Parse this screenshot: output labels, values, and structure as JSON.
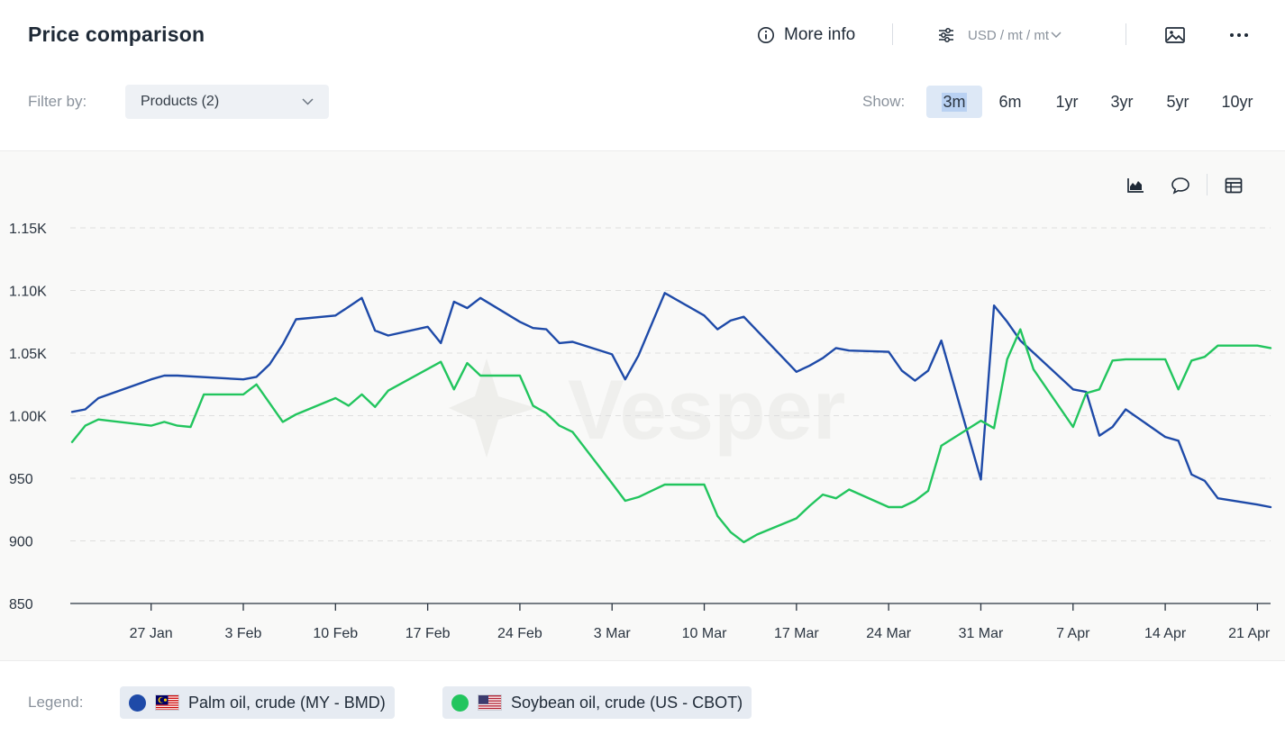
{
  "header": {
    "title": "Price comparison",
    "more_info_label": "More info",
    "unit_label": "USD / mt / mt"
  },
  "filters": {
    "filter_label": "Filter by:",
    "product_select_value": "Products (2)",
    "show_label": "Show:",
    "ranges": [
      {
        "label": "3m",
        "active": true
      },
      {
        "label": "6m",
        "active": false
      },
      {
        "label": "1yr",
        "active": false
      },
      {
        "label": "3yr",
        "active": false
      },
      {
        "label": "5yr",
        "active": false
      },
      {
        "label": "10yr",
        "active": false
      }
    ]
  },
  "watermark": "Vesper",
  "legend": {
    "label": "Legend:",
    "items": [
      {
        "label": "Palm oil, crude (MY - BMD)",
        "color": "#1e4aa8",
        "flag": "malaysia"
      },
      {
        "label": "Soybean oil, crude (US - CBOT)",
        "color": "#22c55e",
        "flag": "united-states"
      }
    ]
  },
  "chart_data": {
    "type": "line",
    "title": "",
    "xlabel": "",
    "ylabel": "",
    "x_ticks": [
      "27 Jan",
      "3 Feb",
      "10 Feb",
      "17 Feb",
      "24 Feb",
      "3 Mar",
      "10 Mar",
      "17 Mar",
      "24 Mar",
      "31 Mar",
      "7 Apr",
      "14 Apr",
      "21 Apr"
    ],
    "y_ticks": [
      "850",
      "900",
      "950",
      "1.00K",
      "1.05K",
      "1.10K",
      "1.15K"
    ],
    "ylim": [
      850,
      1150
    ],
    "xlim": [
      "2025-01-21",
      "2025-04-22"
    ],
    "grid": "horizontal dashed",
    "series": [
      {
        "name": "Palm oil, crude (MY - BMD)",
        "color": "#1e4aa8",
        "x": [
          "2025-01-21",
          "2025-01-22",
          "2025-01-23",
          "2025-01-27",
          "2025-01-28",
          "2025-01-29",
          "2025-02-03",
          "2025-02-04",
          "2025-02-05",
          "2025-02-06",
          "2025-02-07",
          "2025-02-10",
          "2025-02-11",
          "2025-02-12",
          "2025-02-13",
          "2025-02-14",
          "2025-02-17",
          "2025-02-18",
          "2025-02-19",
          "2025-02-20",
          "2025-02-21",
          "2025-02-24",
          "2025-02-25",
          "2025-02-26",
          "2025-02-27",
          "2025-02-28",
          "2025-03-03",
          "2025-03-04",
          "2025-03-05",
          "2025-03-07",
          "2025-03-10",
          "2025-03-11",
          "2025-03-12",
          "2025-03-13",
          "2025-03-17",
          "2025-03-18",
          "2025-03-19",
          "2025-03-20",
          "2025-03-21",
          "2025-03-24",
          "2025-03-25",
          "2025-03-26",
          "2025-03-27",
          "2025-03-28",
          "2025-03-31",
          "2025-04-01",
          "2025-04-02",
          "2025-04-03",
          "2025-04-07",
          "2025-04-08",
          "2025-04-09",
          "2025-04-10",
          "2025-04-11",
          "2025-04-14",
          "2025-04-15",
          "2025-04-16",
          "2025-04-17",
          "2025-04-18",
          "2025-04-21",
          "2025-04-22"
        ],
        "y": [
          1003,
          1005,
          1014,
          1029,
          1032,
          1032,
          1029,
          1031,
          1041,
          1057,
          1077,
          1080,
          1087,
          1094,
          1068,
          1064,
          1071,
          1058,
          1091,
          1086,
          1094,
          1075,
          1070,
          1069,
          1058,
          1059,
          1049,
          1029,
          1048,
          1098,
          1080,
          1069,
          1076,
          1079,
          1035,
          1040,
          1046,
          1054,
          1052,
          1051,
          1036,
          1028,
          1036,
          1060,
          949,
          1088,
          1075,
          1060,
          1021,
          1019,
          984,
          991,
          1005,
          983,
          980,
          953,
          948,
          934,
          929,
          927
        ]
      },
      {
        "name": "Soybean oil, crude (US - CBOT)",
        "color": "#22c55e",
        "x": [
          "2025-01-21",
          "2025-01-22",
          "2025-01-23",
          "2025-01-27",
          "2025-01-28",
          "2025-01-29",
          "2025-01-30",
          "2025-01-31",
          "2025-02-03",
          "2025-02-04",
          "2025-02-05",
          "2025-02-06",
          "2025-02-07",
          "2025-02-10",
          "2025-02-11",
          "2025-02-12",
          "2025-02-13",
          "2025-02-14",
          "2025-02-18",
          "2025-02-19",
          "2025-02-20",
          "2025-02-21",
          "2025-02-24",
          "2025-02-25",
          "2025-02-26",
          "2025-02-27",
          "2025-02-28",
          "2025-03-03",
          "2025-03-04",
          "2025-03-05",
          "2025-03-06",
          "2025-03-07",
          "2025-03-10",
          "2025-03-11",
          "2025-03-12",
          "2025-03-13",
          "2025-03-14",
          "2025-03-17",
          "2025-03-18",
          "2025-03-19",
          "2025-03-20",
          "2025-03-21",
          "2025-03-24",
          "2025-03-25",
          "2025-03-26",
          "2025-03-27",
          "2025-03-28",
          "2025-03-31",
          "2025-04-01",
          "2025-04-02",
          "2025-04-03",
          "2025-04-04",
          "2025-04-07",
          "2025-04-08",
          "2025-04-09",
          "2025-04-10",
          "2025-04-11",
          "2025-04-14",
          "2025-04-15",
          "2025-04-16",
          "2025-04-17",
          "2025-04-18",
          "2025-04-21",
          "2025-04-22"
        ],
        "y": [
          979,
          992,
          997,
          992,
          995,
          992,
          991,
          1017,
          1017,
          1025,
          1010,
          995,
          1001,
          1014,
          1008,
          1017,
          1007,
          1020,
          1043,
          1021,
          1042,
          1032,
          1032,
          1008,
          1002,
          992,
          987,
          946,
          932,
          935,
          940,
          945,
          945,
          920,
          907,
          899,
          905,
          918,
          928,
          937,
          934,
          941,
          927,
          927,
          932,
          940,
          976,
          996,
          990,
          1045,
          1069,
          1037,
          991,
          1018,
          1021,
          1044,
          1045,
          1045,
          1021,
          1044,
          1047,
          1056,
          1056,
          1054
        ]
      }
    ]
  }
}
